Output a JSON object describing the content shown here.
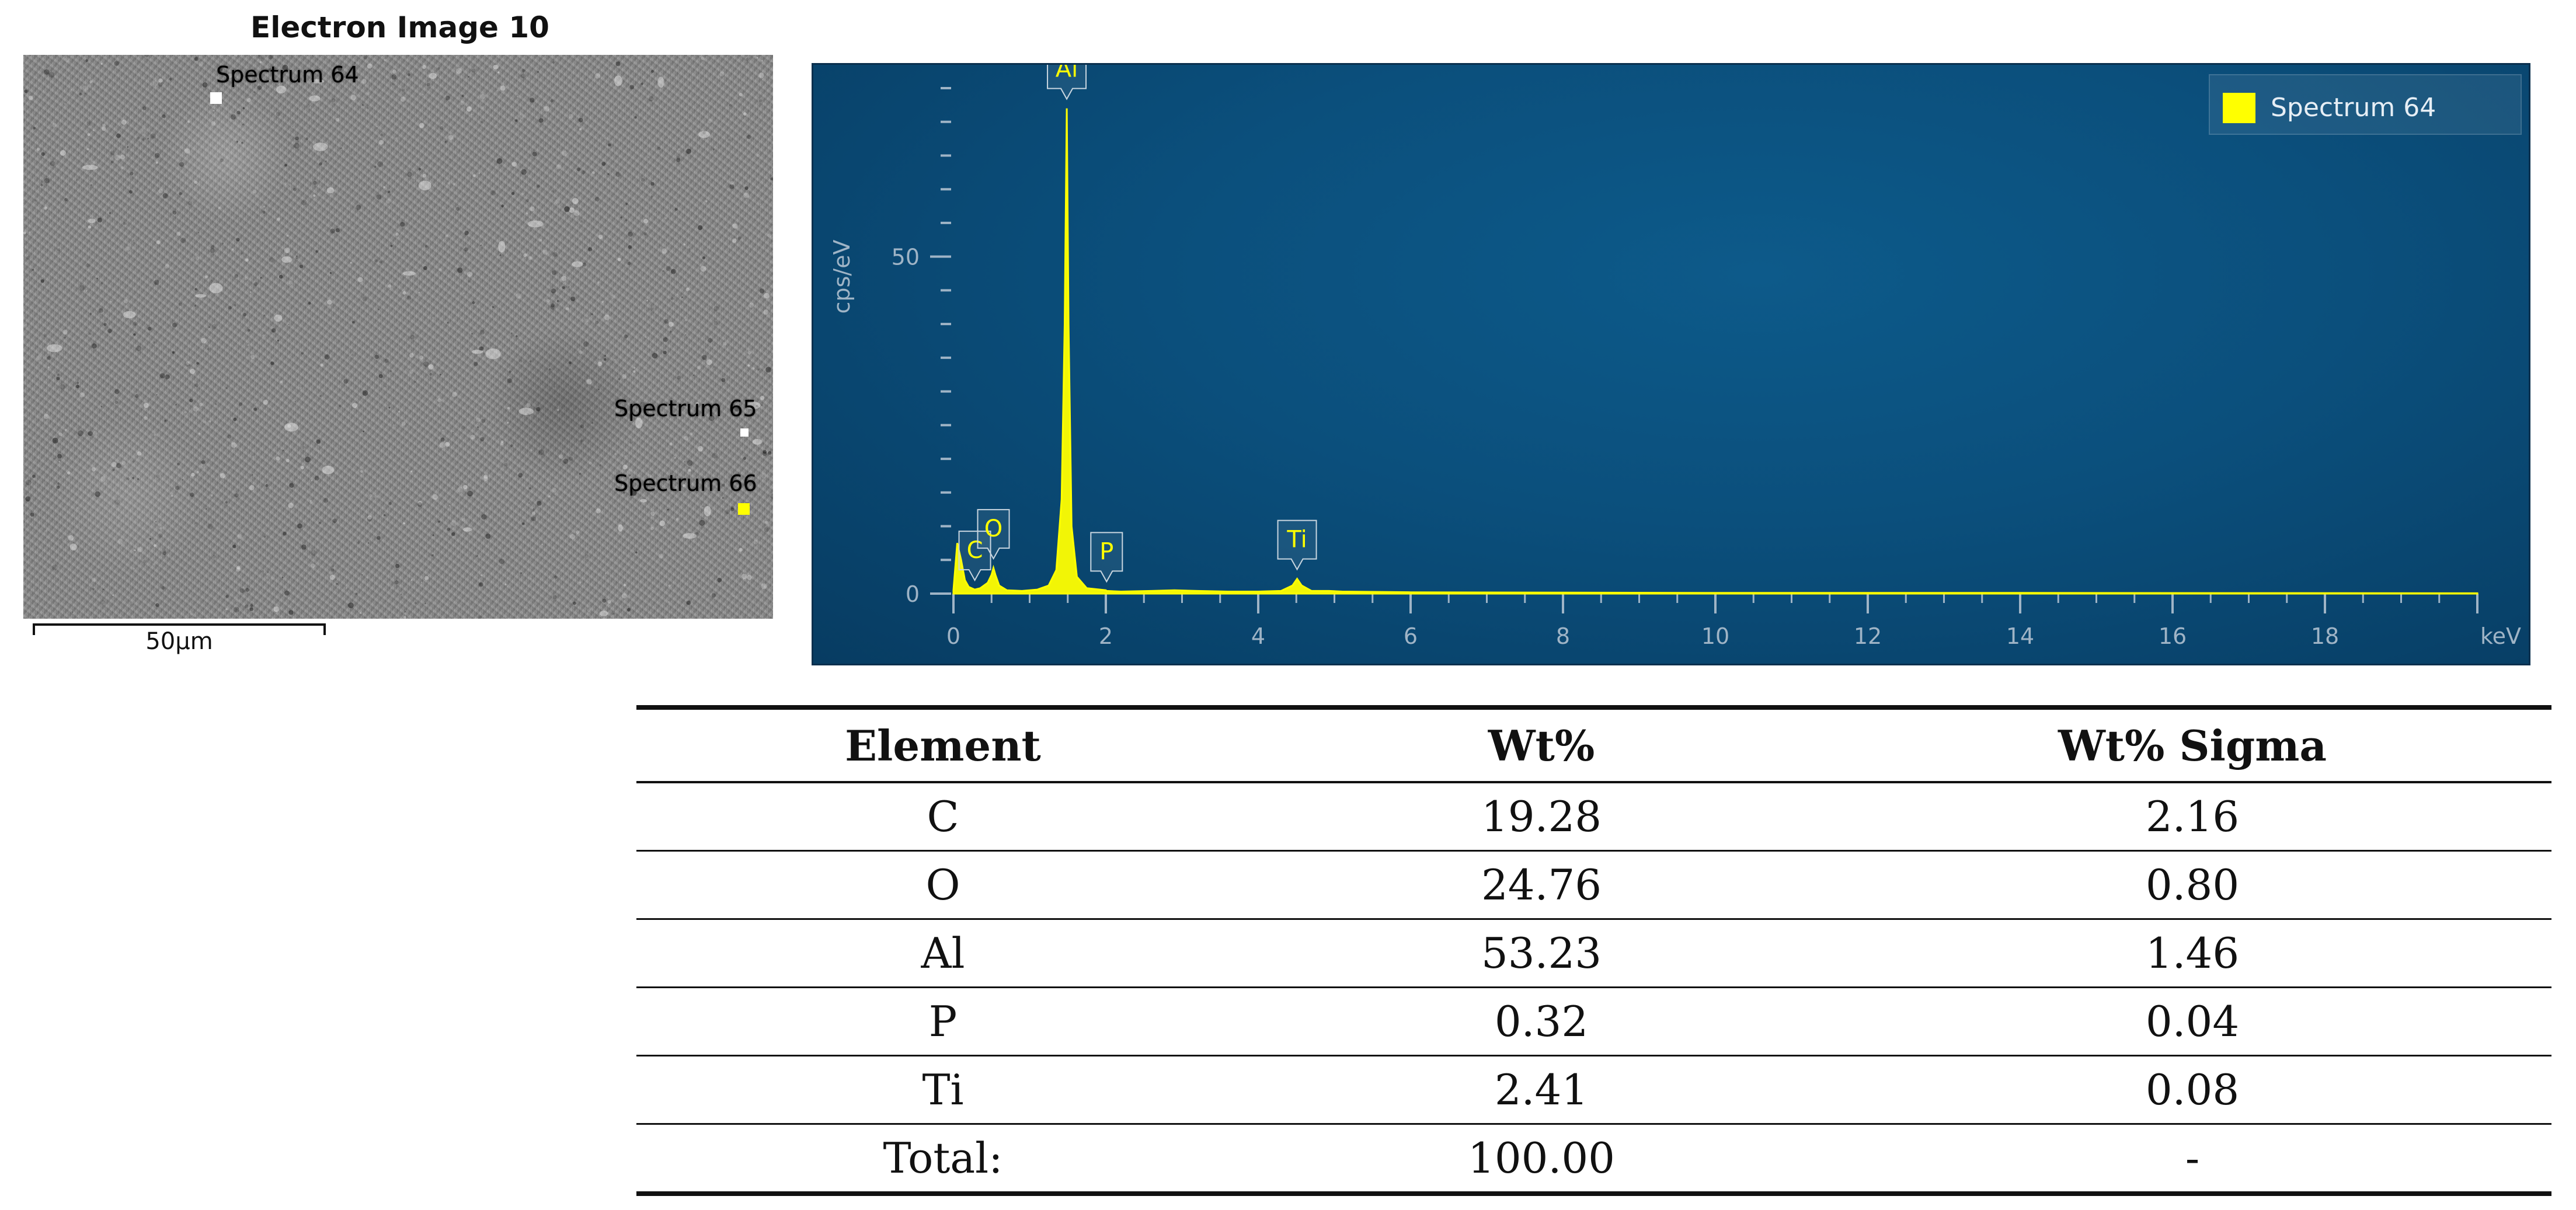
{
  "electron_image": {
    "title": "Electron Image 10",
    "spectra": [
      {
        "label": "Spectrum 64",
        "color": "#ffffff"
      },
      {
        "label": "Spectrum 65",
        "color": "#ffffff"
      },
      {
        "label": "Spectrum 66",
        "color": "#ffff00"
      }
    ],
    "scale_bar_label": "50µm"
  },
  "chart_data": {
    "type": "line",
    "title": "",
    "xlabel": "keV",
    "ylabel": "cps/eV",
    "xlim": [
      0,
      20
    ],
    "ylim": [
      0,
      75
    ],
    "x_ticks": [
      "0",
      "2",
      "4",
      "6",
      "8",
      "10",
      "12",
      "14",
      "16",
      "18"
    ],
    "y_ticks": [
      "0",
      "50"
    ],
    "legend": {
      "position": "top-right",
      "entries": [
        "Spectrum 64"
      ]
    },
    "series": [
      {
        "name": "Spectrum 64",
        "color": "#ffff00",
        "x": [
          0.0,
          0.05,
          0.1,
          0.15,
          0.2,
          0.28,
          0.35,
          0.45,
          0.5,
          0.525,
          0.55,
          0.6,
          0.7,
          0.9,
          1.1,
          1.25,
          1.35,
          1.42,
          1.46,
          1.487,
          1.51,
          1.55,
          1.62,
          1.75,
          2.0,
          2.01,
          2.2,
          2.6,
          2.9,
          3.2,
          3.6,
          4.0,
          4.3,
          4.45,
          4.51,
          4.57,
          4.7,
          4.93,
          5.1,
          6.0,
          8.0,
          10.0,
          14.0,
          20.0
        ],
        "y": [
          0.5,
          7.5,
          5.0,
          2.0,
          1.0,
          0.6,
          0.8,
          1.6,
          2.8,
          3.8,
          2.8,
          1.2,
          0.5,
          0.4,
          0.6,
          1.2,
          3.5,
          14.0,
          40.0,
          72.0,
          40.0,
          10.0,
          2.5,
          0.8,
          0.5,
          0.4,
          0.3,
          0.4,
          0.5,
          0.4,
          0.3,
          0.3,
          0.4,
          1.2,
          2.2,
          1.2,
          0.4,
          0.4,
          0.3,
          0.2,
          0.15,
          0.1,
          0.1,
          0.05
        ]
      }
    ],
    "peak_labels": [
      {
        "element": "C",
        "x": 0.28
      },
      {
        "element": "O",
        "x": 0.525
      },
      {
        "element": "Al",
        "x": 1.487
      },
      {
        "element": "P",
        "x": 2.01
      },
      {
        "element": "Ti",
        "x": 4.51
      }
    ]
  },
  "table": {
    "headers": [
      "Element",
      "Wt%",
      "Wt% Sigma"
    ],
    "rows": [
      [
        "C",
        "19.28",
        "2.16"
      ],
      [
        "O",
        "24.76",
        "0.80"
      ],
      [
        "Al",
        "53.23",
        "1.46"
      ],
      [
        "P",
        "0.32",
        "0.04"
      ],
      [
        "Ti",
        "2.41",
        "0.08"
      ],
      [
        "Total:",
        "100.00",
        "-"
      ]
    ]
  }
}
